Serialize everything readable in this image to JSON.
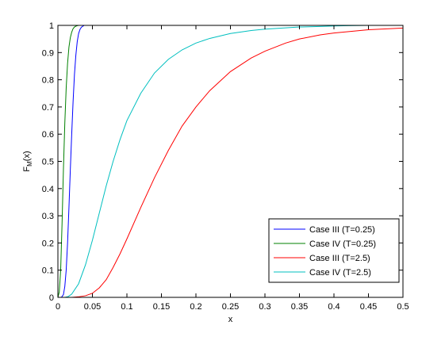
{
  "chart_data": {
    "type": "line",
    "xlabel": "x",
    "ylabel": "F",
    "ylabel_sub": "M",
    "ylabel_tail": "(x)",
    "xlim": [
      0,
      0.5
    ],
    "ylim": [
      0,
      1
    ],
    "x_ticks": [
      0,
      0.05,
      0.1,
      0.15,
      0.2,
      0.25,
      0.3,
      0.35,
      0.4,
      0.45,
      0.5
    ],
    "x_tick_labels": [
      "0",
      "0.05",
      "0.1",
      "0.15",
      "0.2",
      "0.25",
      "0.3",
      "0.35",
      "0.4",
      "0.45",
      "0.5"
    ],
    "y_ticks": [
      0,
      0.1,
      0.2,
      0.3,
      0.4,
      0.5,
      0.6,
      0.7,
      0.8,
      0.9,
      1
    ],
    "y_tick_labels": [
      "0",
      "0.1",
      "0.2",
      "0.3",
      "0.4",
      "0.5",
      "0.6",
      "0.7",
      "0.8",
      "0.9",
      "1"
    ],
    "grid": false,
    "legend_position": "bottom-right",
    "series": [
      {
        "name": "Case III (T=0.25)",
        "color": "#0000ff",
        "x": [
          0.0,
          0.005,
          0.008,
          0.01,
          0.012,
          0.014,
          0.016,
          0.018,
          0.02,
          0.022,
          0.024,
          0.026,
          0.028,
          0.03,
          0.032,
          0.034,
          0.038,
          0.5
        ],
        "y": [
          0.0,
          0.0,
          0.01,
          0.04,
          0.1,
          0.2,
          0.33,
          0.47,
          0.6,
          0.72,
          0.82,
          0.89,
          0.94,
          0.97,
          0.985,
          0.993,
          1.0,
          1.0
        ]
      },
      {
        "name": "Case IV (T=0.25)",
        "color": "#008000",
        "x": [
          0.0,
          0.002,
          0.004,
          0.006,
          0.008,
          0.01,
          0.012,
          0.014,
          0.016,
          0.018,
          0.02,
          0.022,
          0.024,
          0.026,
          0.028,
          0.03,
          0.5
        ],
        "y": [
          0.0,
          0.02,
          0.1,
          0.27,
          0.47,
          0.64,
          0.77,
          0.86,
          0.92,
          0.955,
          0.975,
          0.988,
          0.994,
          0.997,
          0.999,
          1.0,
          1.0
        ]
      },
      {
        "name": "Case III (T=2.5)",
        "color": "#ff0000",
        "x": [
          0.0,
          0.02,
          0.03,
          0.04,
          0.05,
          0.06,
          0.07,
          0.08,
          0.09,
          0.1,
          0.12,
          0.14,
          0.16,
          0.18,
          0.2,
          0.22,
          0.25,
          0.28,
          0.3,
          0.33,
          0.35,
          0.38,
          0.4,
          0.45,
          0.5
        ],
        "y": [
          0.0,
          0.0,
          0.002,
          0.006,
          0.015,
          0.035,
          0.065,
          0.11,
          0.16,
          0.215,
          0.33,
          0.44,
          0.54,
          0.63,
          0.7,
          0.76,
          0.83,
          0.88,
          0.905,
          0.935,
          0.95,
          0.965,
          0.972,
          0.984,
          0.99
        ]
      },
      {
        "name": "Case IV (T=2.5)",
        "color": "#00bfbf",
        "x": [
          0.0,
          0.01,
          0.015,
          0.02,
          0.03,
          0.04,
          0.05,
          0.06,
          0.07,
          0.08,
          0.09,
          0.1,
          0.12,
          0.14,
          0.16,
          0.18,
          0.2,
          0.22,
          0.25,
          0.28,
          0.3,
          0.33,
          0.35,
          0.38,
          0.4,
          0.42,
          0.45,
          0.5
        ],
        "y": [
          0.0,
          0.0,
          0.003,
          0.012,
          0.05,
          0.12,
          0.21,
          0.31,
          0.41,
          0.5,
          0.58,
          0.65,
          0.75,
          0.825,
          0.875,
          0.91,
          0.935,
          0.952,
          0.97,
          0.981,
          0.986,
          0.991,
          0.994,
          0.996,
          0.998,
          0.999,
          1.0,
          1.0
        ]
      }
    ]
  }
}
